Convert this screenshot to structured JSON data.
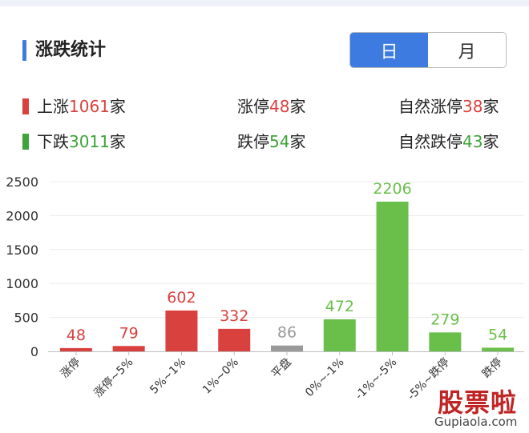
{
  "header": {
    "title": "涨跌统计",
    "tabs": [
      {
        "label": "日",
        "active": true
      },
      {
        "label": "月",
        "active": false
      }
    ]
  },
  "stats": {
    "up": {
      "prefix": "上涨",
      "value": "1061",
      "suffix": "家"
    },
    "limit_up": {
      "prefix": "涨停",
      "value": "48",
      "suffix": "家"
    },
    "natural_limit_up": {
      "prefix": "自然涨停",
      "value": "38",
      "suffix": "家"
    },
    "down": {
      "prefix": "下跌",
      "value": "3011",
      "suffix": "家"
    },
    "limit_down": {
      "prefix": "跌停",
      "value": "54",
      "suffix": "家"
    },
    "natural_limit_down": {
      "prefix": "自然跌停",
      "value": "43",
      "suffix": "家"
    }
  },
  "colors": {
    "up": "#d9413f",
    "down": "#6abf4b",
    "flat": "#9a9a9a",
    "accent": "#3d7be0"
  },
  "chart_data": {
    "type": "bar",
    "categories": [
      "涨停",
      "涨停~5%",
      "5%~1%",
      "1%~0%",
      "平盘",
      "0%~-1%",
      "-1%~-5%",
      "-5%~跌停",
      "跌停"
    ],
    "values": [
      48,
      79,
      602,
      332,
      86,
      472,
      2206,
      279,
      54
    ],
    "bar_colors": [
      "up",
      "up",
      "up",
      "up",
      "flat",
      "down",
      "down",
      "down",
      "down"
    ],
    "yticks": [
      0,
      500,
      1000,
      1500,
      2000,
      2500
    ],
    "ylim": [
      0,
      2500
    ],
    "grid": true,
    "legend": "none"
  },
  "watermark": {
    "main": "股票啦",
    "sub": "Gupiaola.com"
  }
}
